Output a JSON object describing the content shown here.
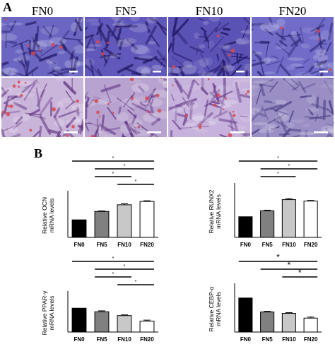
{
  "panel_a": {
    "letter": "A",
    "columns": [
      "FN0",
      "FN5",
      "FN10",
      "FN20"
    ],
    "rows": [
      {
        "tone": [
          "#6a66c2",
          "#6058bb",
          "#5a52b5",
          "#706cc8"
        ],
        "texture": [
          "#2a1f6e",
          "#241a66",
          "#201660",
          "#332a78"
        ]
      },
      {
        "tone": [
          "#c9b4da",
          "#b8a2cf",
          "#c6b2dc",
          "#9a8ec4"
        ],
        "texture": [
          "#6a3d8a",
          "#5c2f82",
          "#6f4492",
          "#4b3f86"
        ]
      }
    ],
    "stain_color": "#d9464e"
  },
  "panel_b": {
    "letter": "B"
  },
  "chart_data": [
    {
      "type": "bar",
      "ylabel": "Relative OCN\nmRNA levels",
      "categories": [
        "FN0",
        "FN5",
        "FN10",
        "FN20"
      ],
      "values": [
        1.0,
        1.48,
        1.86,
        2.05
      ],
      "errors": [
        0,
        0.03,
        0.06,
        0.04
      ],
      "ylim": [
        0,
        2.5
      ],
      "yticks": [],
      "bar_fills": [
        "#000000",
        "#808080",
        "#c8c8c8",
        "#ffffff"
      ],
      "significance": [
        {
          "from": 0,
          "to": 3,
          "label": "*"
        },
        {
          "from": 1,
          "to": 3,
          "label": "*"
        },
        {
          "from": 1,
          "to": 2,
          "label": "*"
        },
        {
          "from": 2,
          "to": 3,
          "label": "*"
        }
      ]
    },
    {
      "type": "bar",
      "ylabel": "Relative RUNX2\nmRNA levels",
      "categories": [
        "FN0",
        "FN5",
        "FN10",
        "FN20"
      ],
      "values": [
        1.0,
        1.29,
        1.83,
        1.76
      ],
      "errors": [
        0,
        0.03,
        0.05,
        0.03
      ],
      "ylim": [
        0,
        2.5
      ],
      "yticks": [],
      "bar_fills": [
        "#000000",
        "#808080",
        "#c8c8c8",
        "#ffffff"
      ],
      "significance": [
        {
          "from": 0,
          "to": 3,
          "label": "*"
        },
        {
          "from": 1,
          "to": 3,
          "label": "*"
        },
        {
          "from": 1,
          "to": 2,
          "label": "*"
        }
      ]
    },
    {
      "type": "bar",
      "ylabel": "Relative PPAR-γ\nmRNA levels",
      "categories": [
        "FN0",
        "FN5",
        "FN10",
        "FN20"
      ],
      "values": [
        1.0,
        0.85,
        0.69,
        0.46
      ],
      "errors": [
        0,
        0.04,
        0.03,
        0.04
      ],
      "ylim": [
        0,
        1.6
      ],
      "yticks": [],
      "bar_fills": [
        "#000000",
        "#808080",
        "#c8c8c8",
        "#ffffff"
      ],
      "significance": [
        {
          "from": 0,
          "to": 3,
          "label": "*"
        },
        {
          "from": 1,
          "to": 3,
          "label": "*"
        },
        {
          "from": 1,
          "to": 2,
          "label": "*"
        },
        {
          "from": 2,
          "to": 3,
          "label": "*"
        }
      ]
    },
    {
      "type": "bar",
      "ylabel": "Relative CEBP-α\nmRNA levels",
      "categories": [
        "FN0",
        "FN5",
        "FN10",
        "FN20"
      ],
      "values": [
        1.0,
        0.59,
        0.55,
        0.41
      ],
      "errors": [
        0,
        0.02,
        0.02,
        0.03
      ],
      "ylim": [
        0,
        1.35
      ],
      "yticks": [],
      "bar_fills": [
        "#000000",
        "#808080",
        "#c8c8c8",
        "#ffffff"
      ],
      "significance": [
        {
          "from": 0,
          "to": 3,
          "label": "*"
        },
        {
          "from": 1,
          "to": 3,
          "label": "*"
        },
        {
          "from": 2,
          "to": 3,
          "label": "*"
        }
      ]
    }
  ]
}
